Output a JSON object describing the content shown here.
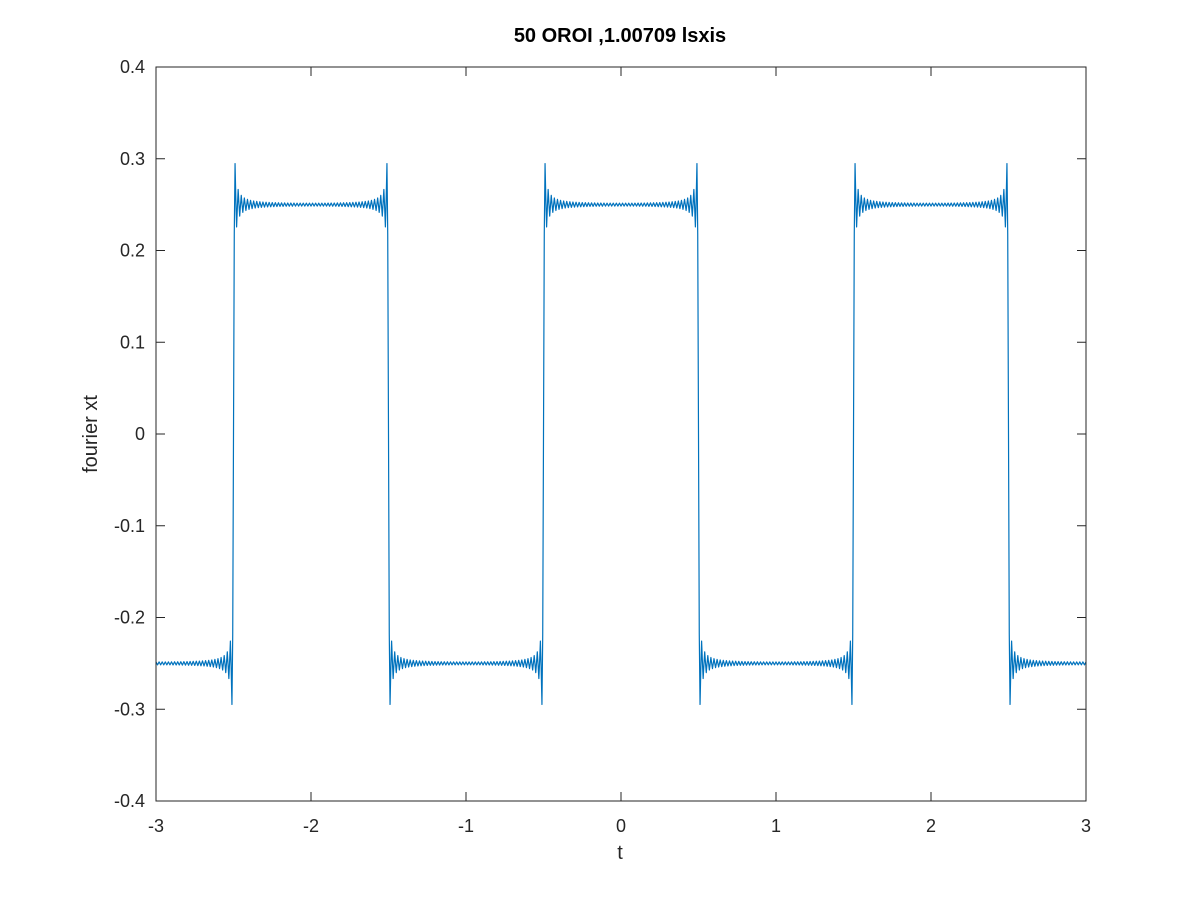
{
  "chart_data": {
    "type": "line",
    "title": "50 OROI ,1.00709  lsxis",
    "xlabel": "t",
    "ylabel": "fourier xt",
    "xlim": [
      -3,
      3
    ],
    "ylim": [
      -0.4,
      0.4
    ],
    "xticks": [
      -3,
      -2,
      -1,
      0,
      1,
      2,
      3
    ],
    "yticks": [
      -0.4,
      -0.3,
      -0.2,
      -0.1,
      0,
      0.1,
      0.2,
      0.3,
      0.4
    ],
    "xtick_labels": [
      "-3",
      "-2",
      "-1",
      "0",
      "1",
      "2",
      "3"
    ],
    "ytick_labels": [
      "-0.4",
      "-0.3",
      "-0.2",
      "-0.1",
      "0",
      "0.1",
      "0.2",
      "0.3",
      "0.4"
    ],
    "grid": false,
    "box": true,
    "series": [
      {
        "color": "#0072bd",
        "wave": {
          "kind": "square-wave-fourier-partial-sum",
          "amplitude": 0.25,
          "period": 2,
          "odd_harmonics": 50,
          "high_level_interval": [
            -0.5,
            0.5
          ],
          "sample_step": 0.005
        },
        "x_range": [
          -3,
          3
        ]
      }
    ],
    "colors": {
      "axes": "#262626",
      "line": "#0072bd",
      "background": "#ffffff"
    }
  }
}
